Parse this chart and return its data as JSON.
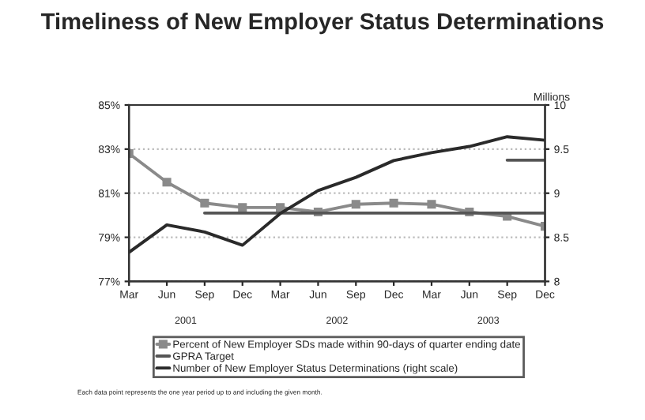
{
  "chart_data": {
    "type": "line",
    "title": "Timeliness of New Employer Status Determinations",
    "categories": [
      "Mar",
      "Jun",
      "Sep",
      "Dec",
      "Mar",
      "Jun",
      "Sep",
      "Dec",
      "Mar",
      "Jun",
      "Sep",
      "Dec"
    ],
    "series": [
      {
        "name": "Percent of New Employer SDs made within 90-days of quarter ending date",
        "color": "#8a8a8a",
        "marker": "square",
        "values": [
          82.8,
          81.5,
          80.55,
          80.35,
          80.35,
          80.15,
          80.5,
          80.55,
          80.5,
          80.15,
          79.95,
          79.5
        ]
      },
      {
        "name": "GPRA Target",
        "color": "#555555",
        "values": [
          null,
          null,
          80.1,
          80.1,
          80.1,
          80.1,
          80.1,
          80.1,
          80.1,
          80.1,
          80.1,
          80.1
        ]
      },
      {
        "color": "#555555",
        "values": [
          null,
          null,
          null,
          null,
          null,
          null,
          null,
          null,
          null,
          null,
          82.5,
          82.5
        ]
      },
      {
        "name": "Number of New Employer Status Determinations (right scale)",
        "color": "#2a2a2a",
        "axis": "y2",
        "values": [
          8.33,
          8.64,
          8.56,
          8.41,
          8.77,
          9.03,
          9.18,
          9.37,
          9.46,
          9.53,
          9.64,
          9.6
        ]
      }
    ],
    "ylim": [
      77,
      85
    ],
    "yticks": [
      {
        "value": 77,
        "label": "77%"
      },
      {
        "value": 79,
        "label": "79%"
      },
      {
        "value": 81,
        "label": "81%"
      },
      {
        "value": 83,
        "label": "83%"
      },
      {
        "value": 85,
        "label": "85%"
      }
    ],
    "y2lim": [
      8,
      10
    ],
    "y2ticks": [
      8,
      8.5,
      9,
      9.5,
      10
    ],
    "y2label": "Millions",
    "grid": "y",
    "legend": "bottom",
    "annotations": [
      "2001",
      "2002",
      "2003",
      "Each data point represents the one year period up to and including the given month."
    ]
  }
}
